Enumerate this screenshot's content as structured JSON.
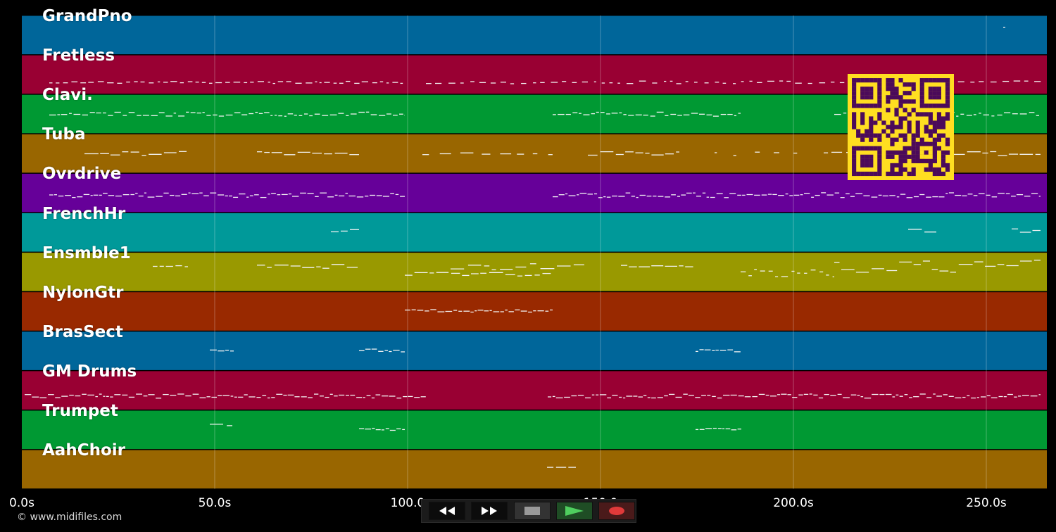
{
  "tracks": [
    {
      "name": "GrandPno",
      "color": "#00669a"
    },
    {
      "name": "Fretless",
      "color": "#990033"
    },
    {
      "name": "Clavi.",
      "color": "#009933"
    },
    {
      "name": "Tuba",
      "color": "#996600"
    },
    {
      "name": "Ovrdrive",
      "color": "#660099"
    },
    {
      "name": "FrenchHr",
      "color": "#009999"
    },
    {
      "name": "Ensmble1",
      "color": "#999900"
    },
    {
      "name": "NylonGtr",
      "color": "#992900"
    },
    {
      "name": "BrasSect",
      "color": "#00669a"
    },
    {
      "name": "GM Drums",
      "color": "#990033"
    },
    {
      "name": "Trumpet",
      "color": "#009933"
    },
    {
      "name": "AahChoir",
      "color": "#996600"
    }
  ],
  "timeline": {
    "tick_labels": [
      "0.0s",
      "50.0s",
      "100.0",
      "150.0",
      "200.0s",
      "250.0s"
    ]
  },
  "transport": {
    "rewind_icon": "rewind-icon",
    "forward_icon": "fast-forward-icon",
    "stop_icon": "stop-icon",
    "play_icon": "play-icon",
    "record_icon": "record-icon",
    "play_color": "#4fcf5f",
    "record_color": "#e03a3a"
  },
  "footer": {
    "copyright": "© www.midifiles.com"
  },
  "overlay": {
    "qr_icon": "qr-code-icon",
    "qr_fg": "#ffde21",
    "qr_bg": "#4b0a5a"
  }
}
